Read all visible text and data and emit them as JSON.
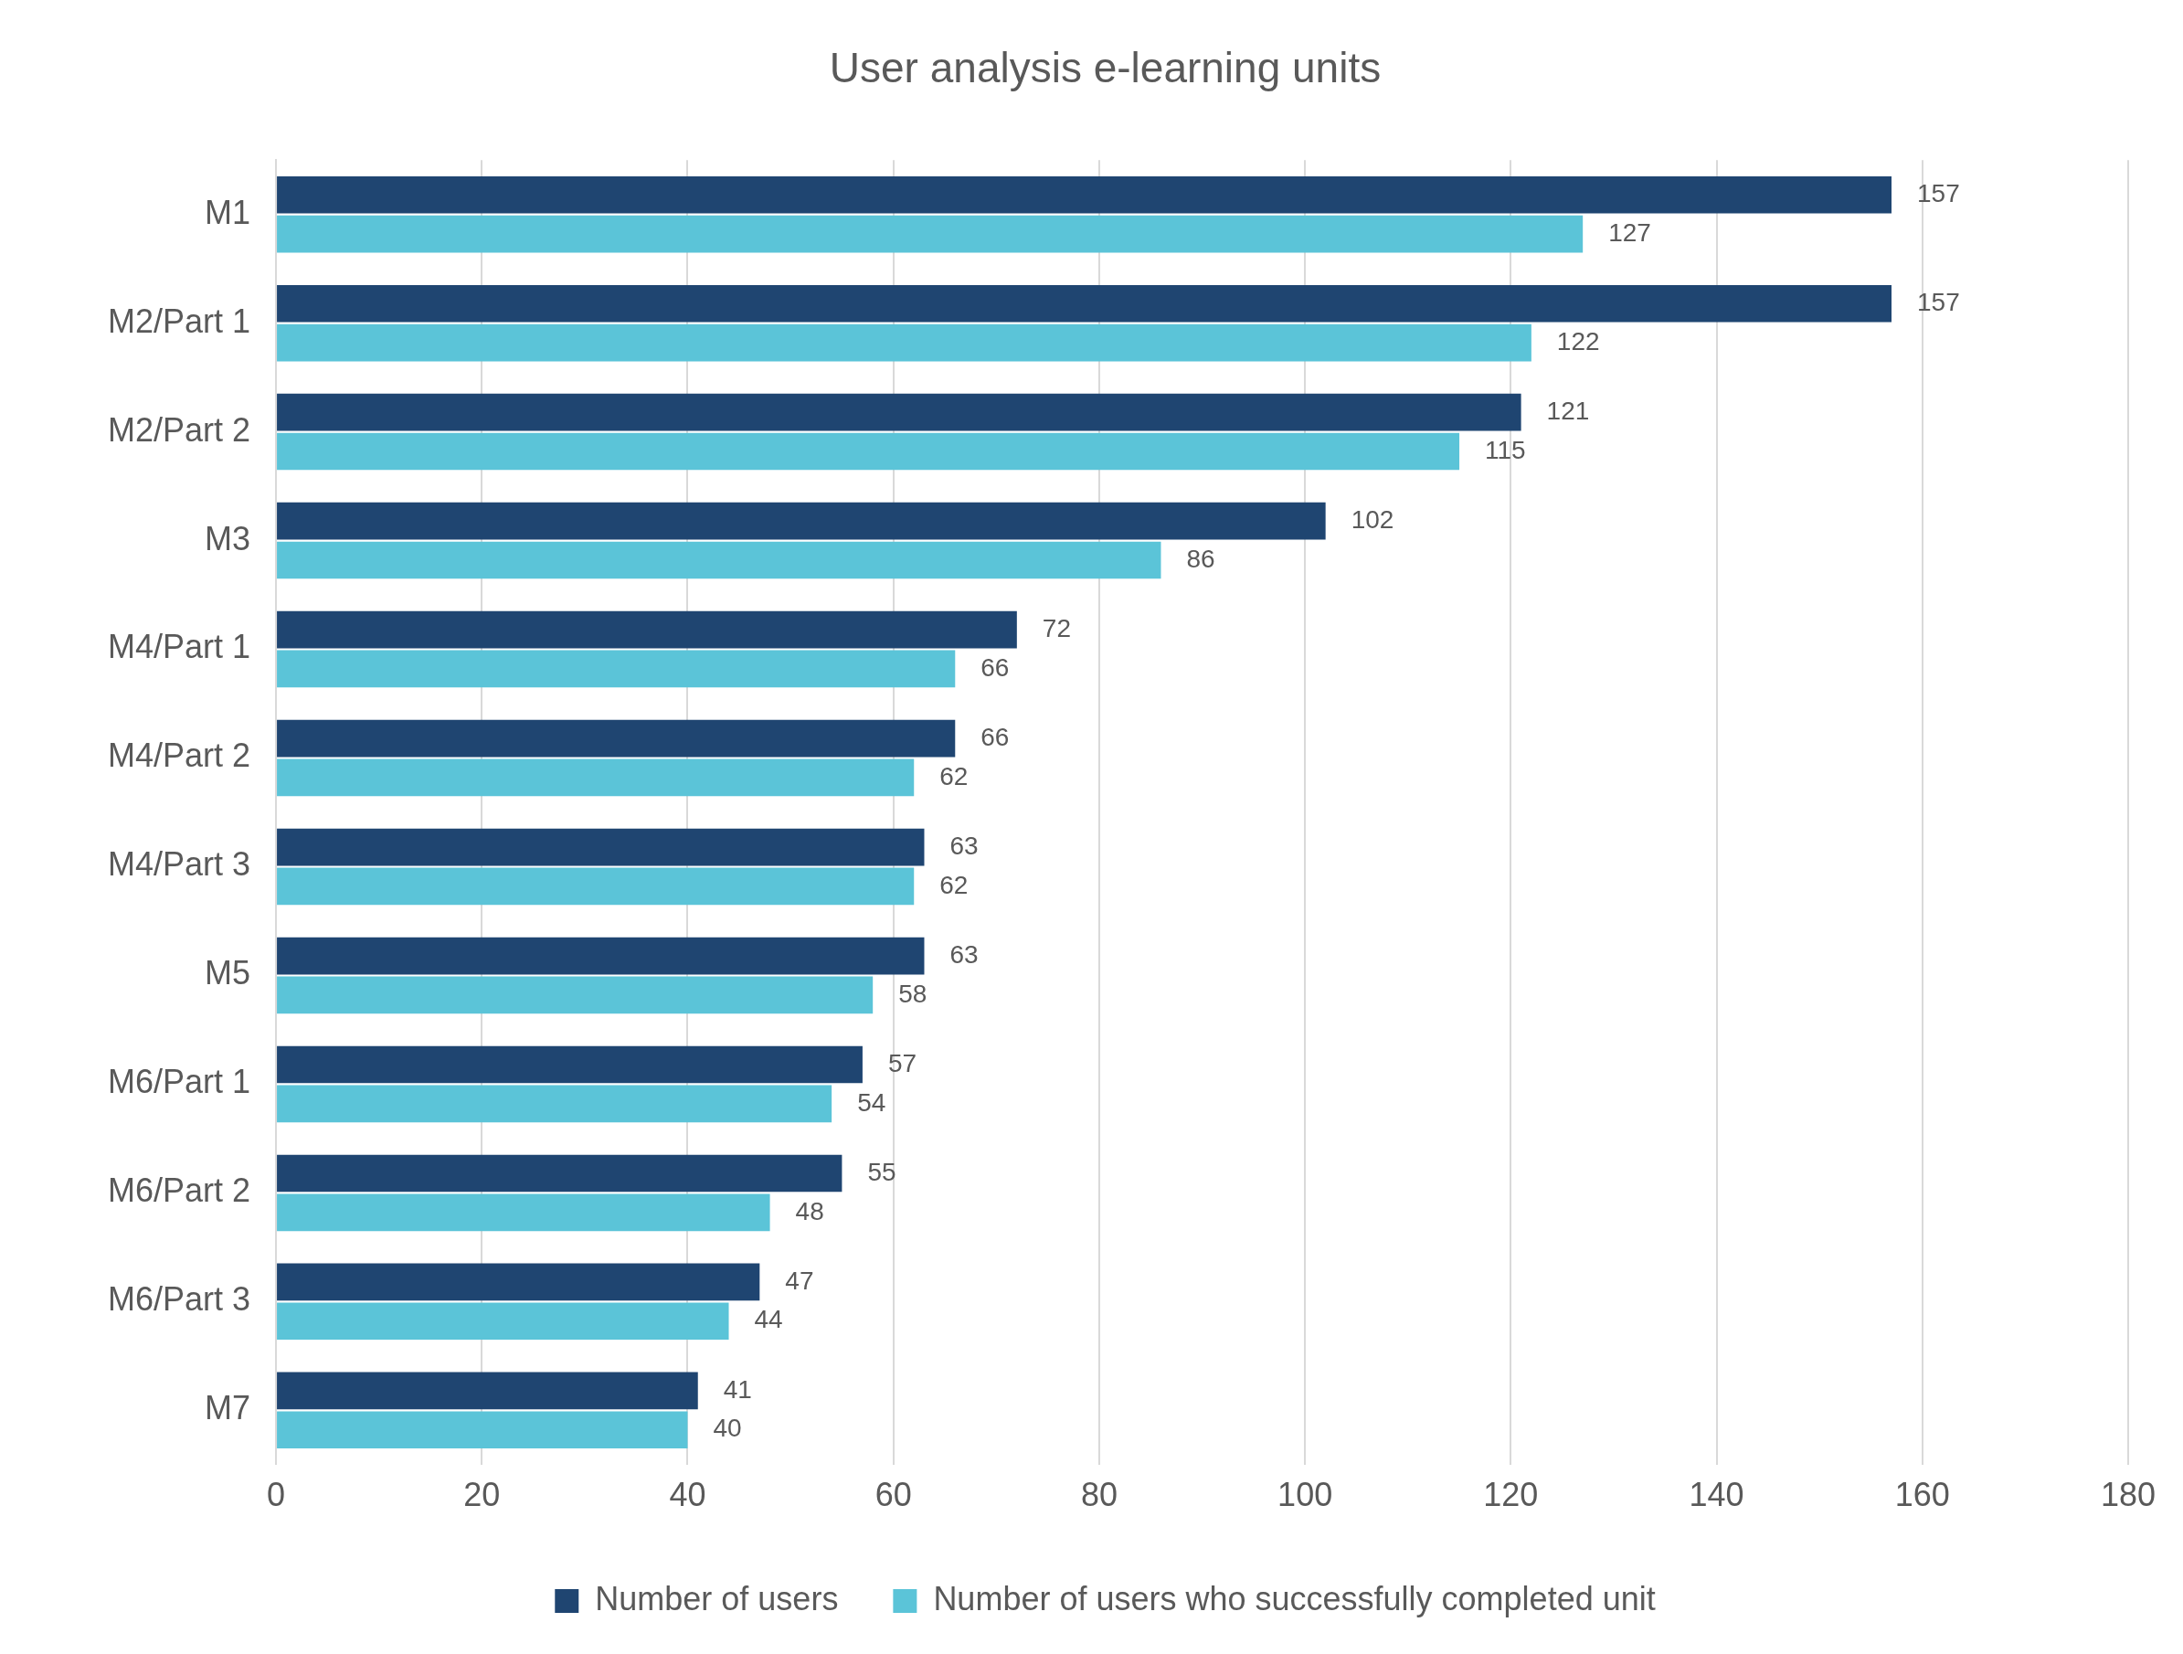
{
  "chart_data": {
    "type": "bar",
    "title": "User analysis e-learning units",
    "orientation": "horizontal",
    "categories": [
      "M1",
      "M2/Part 1",
      "M2/Part 2",
      "M3",
      "M4/Part 1",
      "M4/Part 2",
      "M4/Part 3",
      "M5",
      "M6/Part 1",
      "M6/Part 2",
      "M6/Part 3",
      "M7"
    ],
    "series": [
      {
        "name": "Number of users",
        "color": "#1f4571",
        "values": [
          157,
          157,
          121,
          102,
          72,
          66,
          63,
          63,
          57,
          55,
          47,
          41
        ]
      },
      {
        "name": "Number of users who successfully completed unit",
        "color": "#5bc4d8",
        "values": [
          127,
          122,
          115,
          86,
          66,
          62,
          62,
          58,
          54,
          48,
          44,
          40
        ]
      }
    ],
    "xlim": [
      0,
      180
    ],
    "xticks": [
      0,
      20,
      40,
      60,
      80,
      100,
      120,
      140,
      160,
      180
    ],
    "grid": "x",
    "legend": "bottom",
    "data_labels": true
  }
}
